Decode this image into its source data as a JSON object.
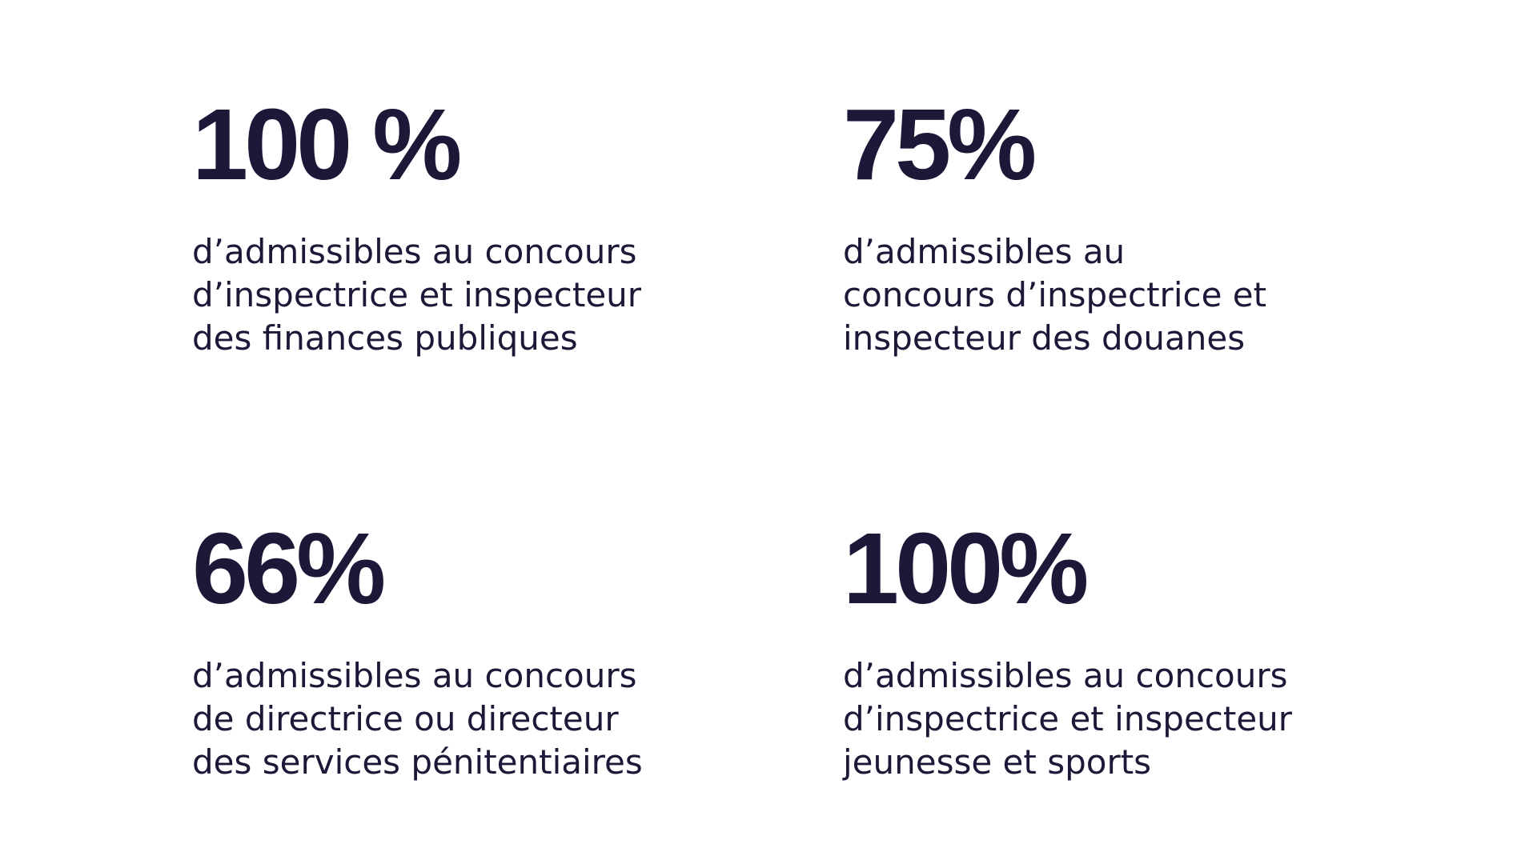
{
  "colors": {
    "text": "#1b1838",
    "background": "#ffffff"
  },
  "stats": [
    {
      "value": "100 %",
      "lines": [
        "d’admissibles au concours",
        "d’inspectrice et inspecteur",
        "des finances publiques"
      ]
    },
    {
      "value": "75%",
      "lines": [
        "d’admissibles au",
        "concours d’inspectrice et",
        "inspecteur des douanes"
      ]
    },
    {
      "value": "66%",
      "lines": [
        "d’admissibles au concours",
        "de directrice ou directeur",
        "des services pénitentiaires"
      ]
    },
    {
      "value": "100%",
      "lines": [
        "d’admissibles au concours",
        "d’inspectrice et inspecteur",
        "jeunesse et sports"
      ]
    }
  ]
}
